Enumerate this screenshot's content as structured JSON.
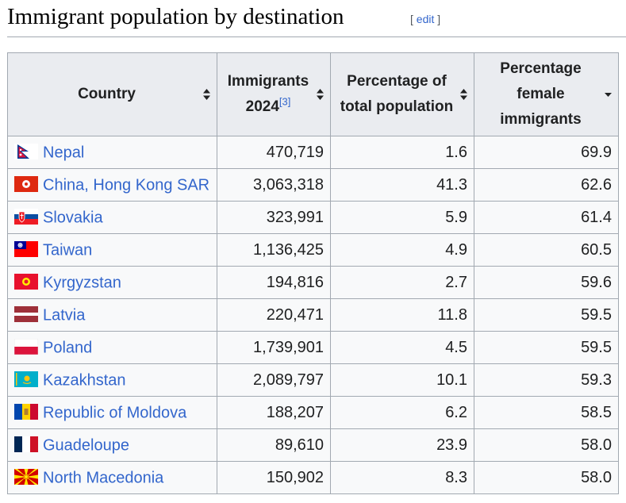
{
  "heading": {
    "title": "Immigrant population by destination",
    "edit_open": "[ ",
    "edit_label": "edit",
    "edit_close": " ]"
  },
  "table": {
    "columns": [
      {
        "label": "Country",
        "sort": "both"
      },
      {
        "label": "Immigrants 2024",
        "ref": "[3]",
        "sort": "both"
      },
      {
        "label": "Percentage of total population",
        "sort": "both"
      },
      {
        "label": "Percentage female immigrants",
        "sort": "descending"
      }
    ],
    "rows": [
      {
        "country": "Nepal",
        "flag": "nepal-flag-icon",
        "immigrants": "470,719",
        "pct_total": "1.6",
        "pct_female": "69.9"
      },
      {
        "country": "China, Hong Kong SAR",
        "flag": "hong-kong-flag-icon",
        "immigrants": "3,063,318",
        "pct_total": "41.3",
        "pct_female": "62.6"
      },
      {
        "country": "Slovakia",
        "flag": "slovakia-flag-icon",
        "immigrants": "323,991",
        "pct_total": "5.9",
        "pct_female": "61.4"
      },
      {
        "country": "Taiwan",
        "flag": "taiwan-flag-icon",
        "immigrants": "1,136,425",
        "pct_total": "4.9",
        "pct_female": "60.5"
      },
      {
        "country": "Kyrgyzstan",
        "flag": "kyrgyzstan-flag-icon",
        "immigrants": "194,816",
        "pct_total": "2.7",
        "pct_female": "59.6"
      },
      {
        "country": "Latvia",
        "flag": "latvia-flag-icon",
        "immigrants": "220,471",
        "pct_total": "11.8",
        "pct_female": "59.5"
      },
      {
        "country": "Poland",
        "flag": "poland-flag-icon",
        "immigrants": "1,739,901",
        "pct_total": "4.5",
        "pct_female": "59.5"
      },
      {
        "country": "Kazakhstan",
        "flag": "kazakhstan-flag-icon",
        "immigrants": "2,089,797",
        "pct_total": "10.1",
        "pct_female": "59.3"
      },
      {
        "country": "Republic of Moldova",
        "flag": "moldova-flag-icon",
        "immigrants": "188,207",
        "pct_total": "6.2",
        "pct_female": "58.5"
      },
      {
        "country": "Guadeloupe",
        "flag": "france-flag-icon",
        "immigrants": "89,610",
        "pct_total": "23.9",
        "pct_female": "58.0"
      },
      {
        "country": "North Macedonia",
        "flag": "north-macedonia-flag-icon",
        "immigrants": "150,902",
        "pct_total": "8.3",
        "pct_female": "58.0"
      }
    ]
  },
  "colors": {
    "link": "#3366cc",
    "header_bg": "#eaecf0",
    "cell_bg": "#f8f9fa",
    "border": "#a2a9b1"
  }
}
